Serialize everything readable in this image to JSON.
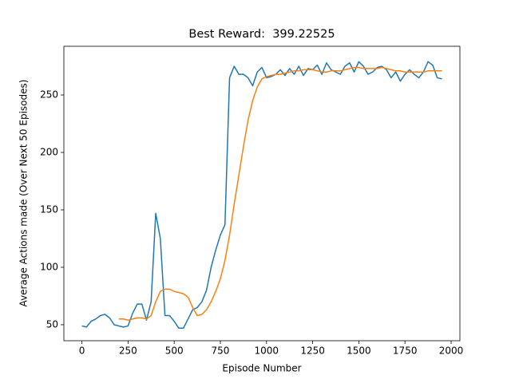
{
  "chart_data": {
    "type": "line",
    "title": "Best Reward:  399.22525",
    "x_label": "Episode Number",
    "y_label": "Average Actions made (Over Next 50 Episodes)",
    "x": [
      0,
      25,
      50,
      75,
      100,
      125,
      150,
      175,
      200,
      225,
      250,
      275,
      300,
      325,
      350,
      375,
      400,
      425,
      450,
      475,
      500,
      525,
      550,
      575,
      600,
      625,
      650,
      675,
      700,
      725,
      750,
      775,
      800,
      825,
      850,
      875,
      900,
      925,
      950,
      975,
      1000,
      1025,
      1050,
      1075,
      1100,
      1125,
      1150,
      1175,
      1200,
      1225,
      1250,
      1275,
      1300,
      1325,
      1350,
      1375,
      1400,
      1425,
      1450,
      1475,
      1500,
      1525,
      1550,
      1575,
      1600,
      1625,
      1650,
      1675,
      1700,
      1725,
      1750,
      1775,
      1800,
      1825,
      1850,
      1875,
      1900,
      1925,
      1950
    ],
    "series": [
      {
        "color": "#1f77b4",
        "values": [
          49,
          48,
          53,
          55,
          58,
          59,
          56,
          50,
          49,
          48,
          49,
          60,
          68,
          68,
          54,
          70,
          147,
          125,
          58,
          58,
          53,
          47,
          47,
          55,
          63,
          65,
          70,
          80,
          100,
          115,
          128,
          137,
          265,
          275,
          268,
          268,
          265,
          258,
          270,
          274,
          265,
          266,
          268,
          272,
          267,
          273,
          268,
          275,
          267,
          273,
          272,
          276,
          268,
          278,
          272,
          270,
          268,
          275,
          278,
          270,
          279,
          275,
          268,
          270,
          274,
          275,
          272,
          265,
          270,
          262,
          268,
          272,
          268,
          265,
          270,
          279,
          276,
          265,
          264
        ]
      },
      {
        "color": "#ff7f0e",
        "values": [
          null,
          null,
          null,
          null,
          null,
          null,
          null,
          null,
          55,
          55,
          54,
          55,
          56,
          56,
          55,
          58,
          70,
          79,
          81,
          81,
          79,
          78,
          77,
          74,
          65,
          58,
          59,
          63,
          70,
          79,
          90,
          106,
          128,
          155,
          180,
          205,
          228,
          245,
          257,
          264,
          266,
          267,
          268,
          268,
          269,
          270,
          271,
          271,
          272,
          272,
          272,
          271,
          270,
          270,
          271,
          271,
          271,
          272,
          273,
          274,
          274,
          273,
          273,
          273,
          273,
          274,
          273,
          272,
          271,
          271,
          270,
          270,
          270,
          270,
          270,
          271,
          271,
          271,
          271
        ]
      }
    ],
    "xlim": [
      -97.5,
      2047.5
    ],
    "xticks": [
      0,
      250,
      500,
      750,
      1000,
      1250,
      1500,
      1750,
      2000
    ],
    "ylim": [
      36.1,
      292.4
    ],
    "yticks": [
      50,
      100,
      150,
      200,
      250
    ]
  }
}
